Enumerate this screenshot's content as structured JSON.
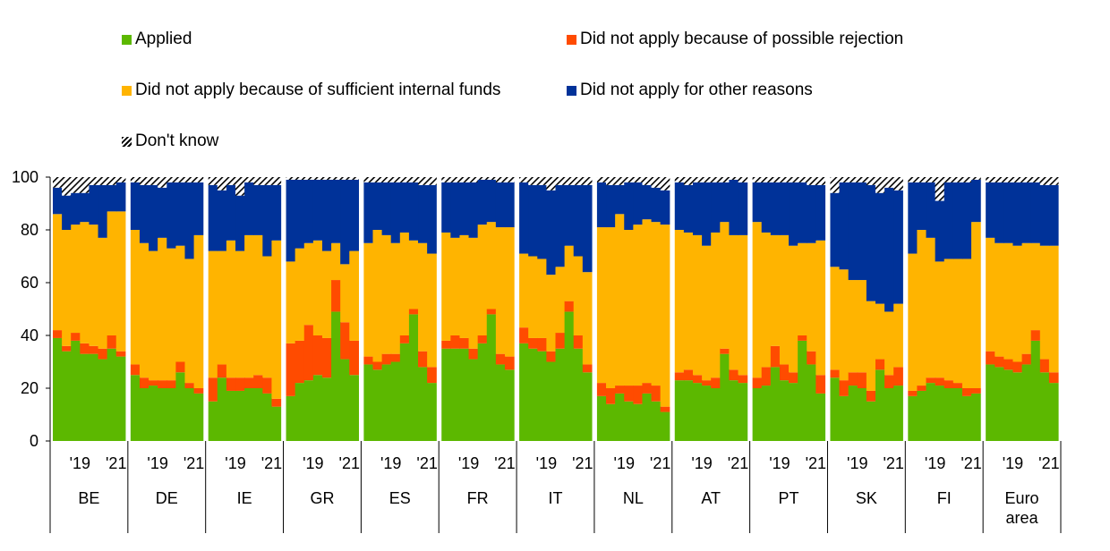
{
  "chart_data": {
    "type": "stacked-bar",
    "ylim": [
      0,
      100
    ],
    "y_ticks": [
      0,
      20,
      40,
      60,
      80,
      100
    ],
    "grid": false,
    "legend_placement": "top",
    "series": [
      {
        "key": "applied",
        "name": "Applied",
        "color": "#5cb800"
      },
      {
        "key": "rejection",
        "name": "Did not apply because of possible rejection",
        "color": "#ff4b00"
      },
      {
        "key": "internal",
        "name": "Did not apply because of sufficient internal funds",
        "color": "#ffb400"
      },
      {
        "key": "other",
        "name": "Did not apply for other reasons",
        "color": "#003299"
      },
      {
        "key": "dontknow",
        "name": "Don't know",
        "color": "hatched"
      }
    ],
    "tick_labels": [
      "'19",
      "'21"
    ],
    "groups": [
      {
        "label": "BE",
        "total": [
          96,
          93,
          94,
          94,
          97,
          97,
          97,
          98
        ],
        "applied": [
          39,
          34,
          38,
          33,
          33,
          31,
          35,
          32
        ],
        "rejection": [
          3,
          2,
          3,
          4,
          3,
          4,
          5,
          2
        ],
        "internal": [
          44,
          44,
          41,
          46,
          46,
          42,
          47,
          53
        ]
      },
      {
        "label": "DE",
        "total": [
          98,
          97,
          97,
          96,
          98,
          98,
          98,
          98
        ],
        "applied": [
          25,
          20,
          21,
          20,
          20,
          26,
          20,
          18
        ],
        "rejection": [
          4,
          4,
          2,
          3,
          3,
          4,
          2,
          2
        ],
        "internal": [
          51,
          51,
          49,
          54,
          50,
          44,
          47,
          58
        ]
      },
      {
        "label": "IE",
        "total": [
          97,
          95,
          97,
          93,
          98,
          97,
          97,
          97
        ],
        "applied": [
          15,
          24,
          19,
          19,
          20,
          20,
          18,
          13
        ],
        "rejection": [
          9,
          5,
          5,
          5,
          4,
          5,
          6,
          3
        ],
        "internal": [
          48,
          43,
          52,
          48,
          54,
          53,
          46,
          60
        ]
      },
      {
        "label": "GR",
        "total": [
          99,
          99,
          99,
          99,
          99,
          99,
          99,
          99
        ],
        "applied": [
          17,
          22,
          23,
          25,
          24,
          49,
          31,
          25
        ],
        "rejection": [
          20,
          16,
          21,
          15,
          15,
          12,
          14,
          13
        ],
        "internal": [
          31,
          35,
          31,
          36,
          33,
          14,
          22,
          34
        ]
      },
      {
        "label": "ES",
        "total": [
          98,
          98,
          98,
          98,
          98,
          98,
          97,
          97
        ],
        "applied": [
          29,
          27,
          29,
          30,
          37,
          48,
          28,
          22
        ],
        "rejection": [
          3,
          3,
          4,
          3,
          3,
          2,
          6,
          6
        ],
        "internal": [
          43,
          50,
          45,
          42,
          39,
          26,
          41,
          43
        ]
      },
      {
        "label": "FR",
        "total": [
          98,
          98,
          98,
          98,
          99,
          99,
          98,
          98
        ],
        "applied": [
          35,
          35,
          35,
          31,
          37,
          48,
          29,
          27
        ],
        "rejection": [
          3,
          5,
          4,
          4,
          3,
          2,
          4,
          5
        ],
        "internal": [
          41,
          37,
          39,
          42,
          42,
          33,
          48,
          49
        ]
      },
      {
        "label": "IT",
        "total": [
          98,
          97,
          97,
          95,
          97,
          97,
          97,
          97
        ],
        "applied": [
          37,
          35,
          34,
          30,
          35,
          49,
          35,
          26
        ],
        "rejection": [
          6,
          4,
          5,
          4,
          6,
          4,
          5,
          3
        ],
        "internal": [
          28,
          31,
          30,
          29,
          25,
          21,
          30,
          35
        ]
      },
      {
        "label": "NL",
        "total": [
          98,
          97,
          97,
          98,
          98,
          97,
          96,
          95
        ],
        "applied": [
          17,
          14,
          18,
          15,
          14,
          18,
          15,
          11
        ],
        "rejection": [
          5,
          6,
          3,
          6,
          7,
          4,
          6,
          2
        ],
        "internal": [
          59,
          61,
          65,
          59,
          61,
          62,
          62,
          69
        ]
      },
      {
        "label": "AT",
        "total": [
          98,
          97,
          98,
          98,
          98,
          98,
          99,
          98
        ],
        "applied": [
          23,
          23,
          22,
          21,
          20,
          33,
          23,
          22
        ],
        "rejection": [
          3,
          4,
          3,
          2,
          4,
          2,
          4,
          3
        ],
        "internal": [
          54,
          52,
          53,
          51,
          55,
          48,
          51,
          53
        ]
      },
      {
        "label": "PT",
        "total": [
          98,
          98,
          98,
          98,
          98,
          98,
          97,
          97
        ],
        "applied": [
          20,
          21,
          28,
          23,
          22,
          38,
          29,
          18
        ],
        "rejection": [
          4,
          7,
          8,
          6,
          4,
          2,
          5,
          7
        ],
        "internal": [
          59,
          51,
          42,
          49,
          48,
          35,
          41,
          51
        ]
      },
      {
        "label": "SK",
        "total": [
          94,
          98,
          98,
          98,
          97,
          94,
          96,
          95
        ],
        "applied": [
          24,
          17,
          21,
          20,
          15,
          27,
          20,
          21
        ],
        "rejection": [
          3,
          6,
          5,
          6,
          4,
          4,
          5,
          7
        ],
        "internal": [
          39,
          42,
          35,
          35,
          34,
          21,
          24,
          24
        ]
      },
      {
        "label": "FI",
        "total": [
          98,
          98,
          98,
          91,
          98,
          98,
          98,
          99
        ],
        "applied": [
          17,
          19,
          22,
          21,
          20,
          20,
          17,
          18
        ],
        "rejection": [
          2,
          2,
          2,
          3,
          3,
          2,
          3,
          2
        ],
        "internal": [
          52,
          59,
          53,
          44,
          46,
          47,
          49,
          63
        ]
      },
      {
        "label": "Euro area",
        "label_lines": [
          "Euro",
          "area"
        ],
        "total": [
          98,
          98,
          98,
          98,
          98,
          98,
          97,
          97
        ],
        "applied": [
          29,
          28,
          27,
          26,
          29,
          38,
          26,
          22
        ],
        "rejection": [
          5,
          4,
          4,
          4,
          4,
          4,
          5,
          4
        ],
        "internal": [
          43,
          43,
          44,
          44,
          42,
          33,
          43,
          48
        ]
      }
    ]
  }
}
